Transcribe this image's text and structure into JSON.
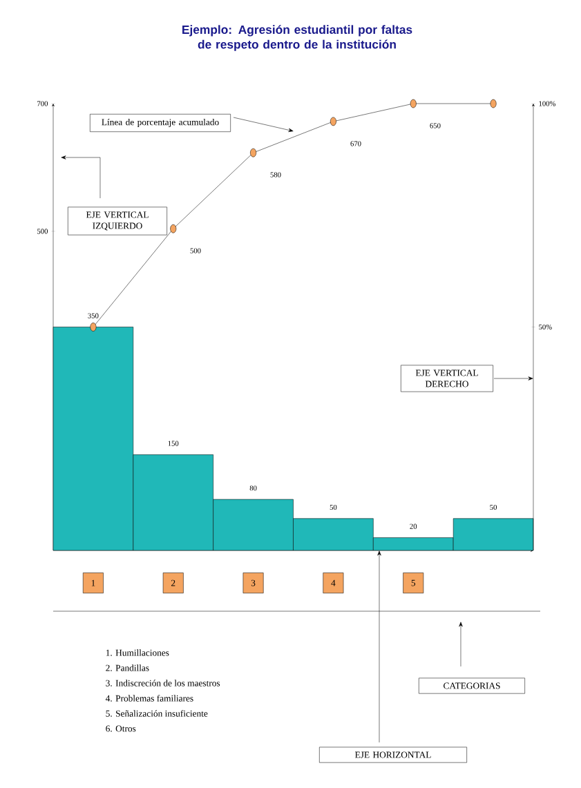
{
  "chart_data": {
    "type": "bar",
    "title": "Ejemplo: Agresión estudiantil por faltas de respeto dentro de la institución",
    "categories": [
      "1",
      "2",
      "3",
      "4",
      "5",
      null
    ],
    "series": [
      {
        "color": "#20b8b8",
        "values": [
          350,
          150,
          80,
          50,
          20,
          50
        ],
        "value_labels": [
          "350",
          "150",
          "80",
          "50",
          "20",
          "50"
        ]
      },
      {
        "type": "line",
        "axis": "y2",
        "color": "#f4a460",
        "values": [
          50,
          72,
          89,
          96,
          100,
          100
        ]
      }
    ],
    "marker": "circle",
    "ylim": [
      0,
      700
    ],
    "yticks": [
      500,
      700
    ],
    "y2lim": [
      0,
      100
    ],
    "y2ticks": [
      {
        "value": 50,
        "label": "50%"
      },
      {
        "value": 100,
        "label": "100%"
      }
    ],
    "annotations": [
      "Línea de porcentaje acumulado",
      "EJE VERTICAL IZQUIERDO",
      "EJE VERTICAL DERECHO",
      "CATEGORIAS",
      "EJE HORIZONTAL",
      "1. Humillaciones",
      "2. Pandillas",
      "3. Indiscreción de los maestros",
      "4. Problemas familiares",
      "5. Señalización insuficiente",
      "6. Otros",
      "500",
      "580",
      "670",
      "650"
    ]
  }
}
